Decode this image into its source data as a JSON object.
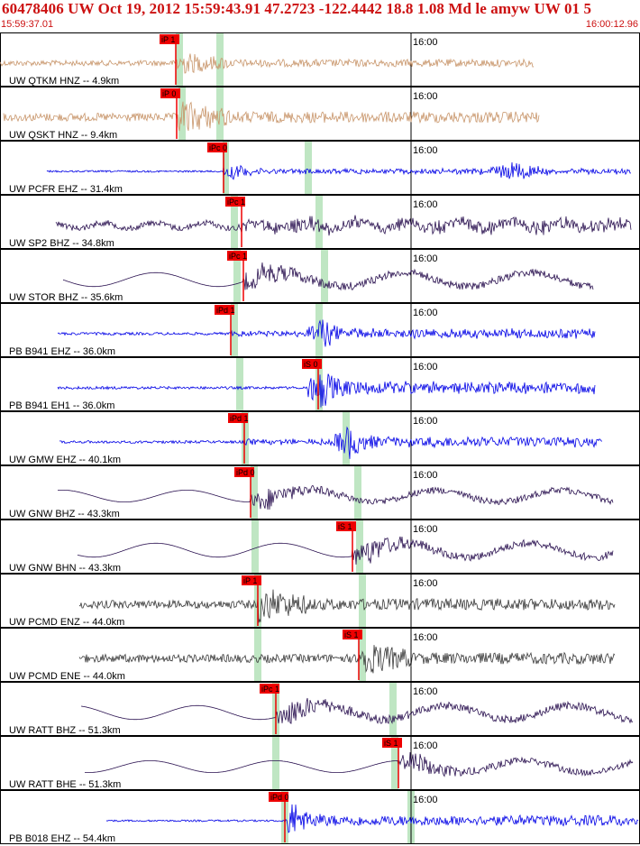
{
  "header": {
    "title": "60478406 UW Oct 19, 2012 15:59:43.91   47.2723 -122.4442 18.8 1.08 Md le amyw UW 01   5",
    "time_start": "15:59:37.01",
    "time_end": "16:00:12.96"
  },
  "chart_data": {
    "type": "line",
    "minute_label": "16:00",
    "colors": {
      "header_text": "#cc1111",
      "pick_box": "#ee0000",
      "pick_line": "#ee0000",
      "window": "#bfe6c3",
      "tan": "#c8956a",
      "blue": "#0000e6",
      "dark": "#2a1150",
      "gray": "#3a3a3a",
      "border": "#000000"
    },
    "traces": [
      {
        "label": "UW QTKM HNZ -- 4.9km",
        "color": "tan",
        "style": "noise",
        "pick": "iP 1",
        "window": true
      },
      {
        "label": "UW QSKT HNZ -- 9.4km",
        "color": "tan",
        "style": "noise",
        "pick": "iP 0",
        "window": true
      },
      {
        "label": "UW PCFR EHZ -- 31.4km",
        "color": "blue",
        "style": "quiet",
        "pick": "iPc 0",
        "window": true
      },
      {
        "label": "UW SP2 BHZ -- 34.8km",
        "color": "dark",
        "style": "wavy",
        "pick": "iPc 1",
        "window": true
      },
      {
        "label": "UW STOR BHZ -- 35.6km",
        "color": "dark",
        "style": "slow",
        "pick": "iPc 1",
        "window": true
      },
      {
        "label": "PB B941 EHZ -- 36.0km",
        "color": "blue",
        "style": "burst",
        "pick": "iPd 1",
        "window": true
      },
      {
        "label": "PB B941 EH1 -- 36.0km",
        "color": "blue",
        "style": "burst",
        "pick": "iS 0",
        "window": true
      },
      {
        "label": "UW GMW EHZ -- 40.1km",
        "color": "blue",
        "style": "burst",
        "pick": "iPd 1",
        "window": true
      },
      {
        "label": "UW GNW BHZ -- 43.3km",
        "color": "dark",
        "style": "slow",
        "pick": "iPd 0",
        "window": true
      },
      {
        "label": "UW GNW BHN -- 43.3km",
        "color": "dark",
        "style": "slow",
        "pick": "iS 1",
        "window": true
      },
      {
        "label": "UW PCMD ENZ -- 44.0km",
        "color": "gray",
        "style": "noise",
        "pick": "iP 1",
        "window": true
      },
      {
        "label": "UW PCMD ENE -- 44.0km",
        "color": "gray",
        "style": "noise",
        "pick": "iS 1",
        "window": true
      },
      {
        "label": "UW RATT BHZ -- 51.3km",
        "color": "dark",
        "style": "slow",
        "pick": "iPc 1",
        "window": true
      },
      {
        "label": "UW RATT BHE -- 51.3km",
        "color": "dark",
        "style": "slow",
        "pick": "iS 1",
        "window": true
      },
      {
        "label": "PB B018 EHZ -- 54.4km",
        "color": "blue",
        "style": "quiet",
        "pick": "iPd 0",
        "window": true
      }
    ]
  }
}
